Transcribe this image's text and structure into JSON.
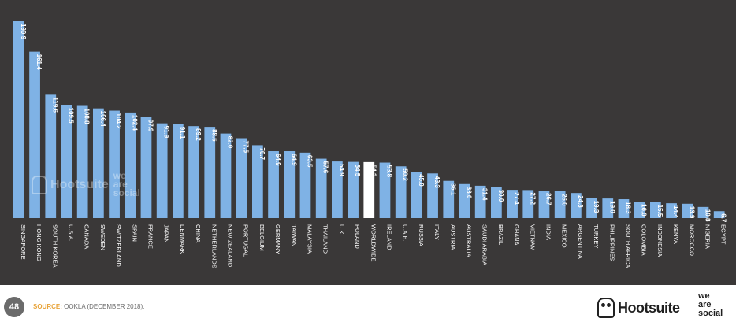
{
  "chart_data": {
    "type": "bar",
    "categories": [
      "SINGAPORE",
      "HONG KONG",
      "SOUTH KOREA",
      "U.S.A.",
      "CANADA",
      "SWEDEN",
      "SWITZERLAND",
      "SPAIN",
      "FRANCE",
      "JAPAN",
      "DENMARK",
      "CHINA",
      "NETHERLANDS",
      "NEW ZEALAND",
      "PORTUGAL",
      "BELGIUM",
      "GERMANY",
      "TAIWAN",
      "MALAYSIA",
      "THAILAND",
      "U.K.",
      "POLAND",
      "WORLDWIDE",
      "IRELAND",
      "U.A.E.",
      "RUSSIA",
      "ITALY",
      "AUSTRIA",
      "AUSTRALIA",
      "SAUDI ARABIA",
      "BRAZIL",
      "GHANA",
      "VIETNAM",
      "INDIA",
      "MEXICO",
      "ARGENTINA",
      "TURKEY",
      "PHILIPPINES",
      "SOUTH AFRICA",
      "COLOMBIA",
      "INDONESIA",
      "KENYA",
      "MOROCCO",
      "NIGERIA",
      "EGYPT"
    ],
    "values": [
      190.9,
      161.4,
      119.6,
      109.5,
      108.8,
      106.4,
      104.2,
      102.4,
      97.9,
      91.9,
      91.1,
      89.2,
      88.5,
      82.0,
      77.5,
      70.7,
      64.9,
      64.9,
      63.5,
      57.6,
      54.9,
      54.5,
      54.3,
      53.8,
      50.2,
      45.0,
      43.3,
      36.1,
      33.0,
      31.4,
      30.0,
      27.4,
      27.2,
      26.7,
      26.0,
      24.3,
      19.3,
      19.0,
      18.3,
      16.0,
      15.5,
      14.4,
      13.9,
      10.8,
      6.7
    ],
    "value_labels": [
      "190.9",
      "161.4",
      "119.6",
      "109.5",
      "108.8",
      "106.4",
      "104.2",
      "102.4",
      "97.9",
      "91.9",
      "91.1",
      "89.2",
      "88.5",
      "82.0",
      "77.5",
      "70.7",
      "64.9",
      "64.9",
      "63.5",
      "57.6",
      "54.9",
      "54.5",
      "54.3",
      "53.8",
      "50.2",
      "45.0",
      "43.3",
      "36.1",
      "33.0",
      "31.4",
      "30.0",
      "27.4",
      "27.2",
      "26.7",
      "26.0",
      "24.3",
      "19.3",
      "19.0",
      "18.3",
      "16.0",
      "15.5",
      "14.4",
      "13.9",
      "10.8",
      "6.7"
    ],
    "highlight_category": "WORLDWIDE",
    "ylim": [
      0,
      190.9
    ],
    "grid": false,
    "colors": {
      "bar": "#7fb2e5",
      "highlight": "#ffffff",
      "label": "#ffffff",
      "background": "#3a3838"
    }
  },
  "footer": {
    "page_number": "48",
    "source_label": "SOURCE:",
    "source_text": "OOKLA (DECEMBER 2018).",
    "logo_text": "Hootsuite",
    "brand_lines": [
      "we",
      "are",
      "social"
    ]
  },
  "watermark": {
    "text": "Hootsuite",
    "brand_lines": [
      "we",
      "are",
      "social"
    ]
  }
}
